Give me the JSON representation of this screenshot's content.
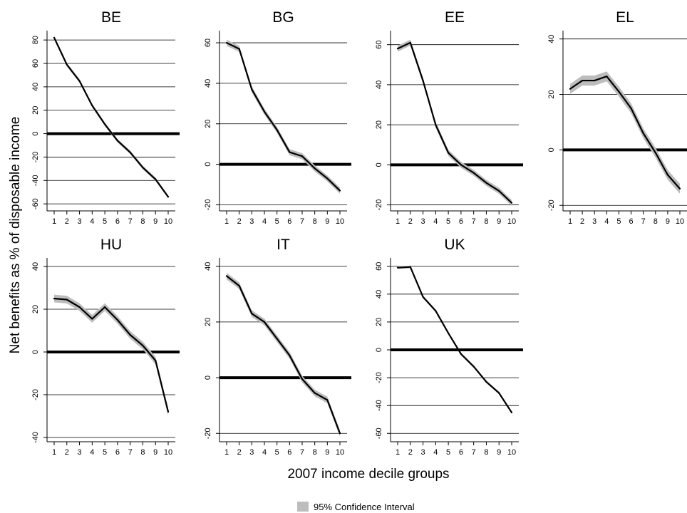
{
  "figure": {
    "ylabel": "Net benefits as % of disposable income",
    "xlabel": "2007 income decile groups",
    "legend_label": "95% Confidence Interval",
    "colors": {
      "line": "#000000",
      "band": "#bdbdbd",
      "grid": "#000000"
    }
  },
  "chart_data": [
    {
      "type": "line",
      "title": "BE",
      "x": [
        1,
        2,
        3,
        4,
        5,
        6,
        7,
        8,
        9,
        10
      ],
      "values": [
        82,
        59,
        45,
        24,
        8,
        -6,
        -16,
        -29,
        -39,
        -54
      ],
      "ci": 1.5,
      "ylim": [
        -66,
        88
      ],
      "yticks": [
        -60,
        -40,
        -20,
        0,
        20,
        40,
        60,
        80
      ],
      "xticks": [
        "1",
        "2",
        "3",
        "4",
        "5",
        "6",
        "7",
        "8",
        "9",
        "10"
      ],
      "grid": true
    },
    {
      "type": "line",
      "title": "BG",
      "x": [
        1,
        2,
        3,
        4,
        5,
        6,
        7,
        8,
        9,
        10
      ],
      "values": [
        60,
        57,
        37,
        26,
        17,
        6,
        4,
        -2,
        -7,
        -13
      ],
      "ci": 1.5,
      "ylim": [
        -23,
        66
      ],
      "yticks": [
        -20,
        0,
        20,
        40,
        60
      ],
      "xticks": [
        "1",
        "2",
        "3",
        "4",
        "5",
        "6",
        "7",
        "8",
        "9",
        "10"
      ],
      "grid": true
    },
    {
      "type": "line",
      "title": "EE",
      "x": [
        1,
        2,
        3,
        4,
        5,
        6,
        7,
        8,
        9,
        10
      ],
      "values": [
        58,
        61,
        42,
        20,
        6,
        0,
        -4,
        -9,
        -13,
        -19
      ],
      "ci": 1.5,
      "ylim": [
        -23,
        67
      ],
      "yticks": [
        -20,
        0,
        20,
        40,
        60
      ],
      "xticks": [
        "1",
        "2",
        "3",
        "4",
        "5",
        "6",
        "7",
        "8",
        "9",
        "10"
      ],
      "grid": true
    },
    {
      "type": "line",
      "title": "EL",
      "x": [
        1,
        2,
        3,
        4,
        5,
        6,
        7,
        8,
        9,
        10
      ],
      "values": [
        22,
        25,
        25,
        26.5,
        21,
        15,
        6,
        -1,
        -9,
        -14
      ],
      "ci": 1.8,
      "ylim": [
        -22,
        43
      ],
      "yticks": [
        -20,
        0,
        20,
        40
      ],
      "xticks": [
        "1",
        "2",
        "3",
        "4",
        "5",
        "6",
        "7",
        "8",
        "9",
        "10"
      ],
      "grid": true
    },
    {
      "type": "line",
      "title": "HU",
      "x": [
        1,
        2,
        3,
        4,
        5,
        6,
        7,
        8,
        9,
        10
      ],
      "values": [
        25,
        24.5,
        21,
        15.5,
        21,
        15,
        8,
        3,
        -4,
        -28
      ],
      "ci": 1.8,
      "ylim": [
        -42,
        44
      ],
      "yticks": [
        -40,
        -20,
        0,
        20,
        40
      ],
      "xticks": [
        "1",
        "2",
        "3",
        "4",
        "5",
        "6",
        "7",
        "8",
        "9",
        "10"
      ],
      "grid": true
    },
    {
      "type": "line",
      "title": "IT",
      "x": [
        1,
        2,
        3,
        4,
        5,
        6,
        7,
        8,
        9,
        10
      ],
      "values": [
        36.5,
        33,
        23,
        20,
        14,
        8,
        -0.5,
        -5.5,
        -8,
        -20
      ],
      "ci": 1.2,
      "ylim": [
        -23,
        43
      ],
      "yticks": [
        -20,
        0,
        20,
        40
      ],
      "xticks": [
        "1",
        "2",
        "3",
        "4",
        "5",
        "6",
        "7",
        "8",
        "9",
        "10"
      ],
      "grid": true
    },
    {
      "type": "line",
      "title": "UK",
      "x": [
        1,
        2,
        3,
        4,
        5,
        6,
        7,
        8,
        9,
        10
      ],
      "values": [
        59,
        59.5,
        38,
        28,
        12,
        -3,
        -12,
        -23,
        -31,
        -45
      ],
      "ci": 1.0,
      "ylim": [
        -66,
        66
      ],
      "yticks": [
        -60,
        -40,
        -20,
        0,
        20,
        40,
        60
      ],
      "xticks": [
        "1",
        "2",
        "3",
        "4",
        "5",
        "6",
        "7",
        "8",
        "9",
        "10"
      ],
      "grid": true
    }
  ]
}
